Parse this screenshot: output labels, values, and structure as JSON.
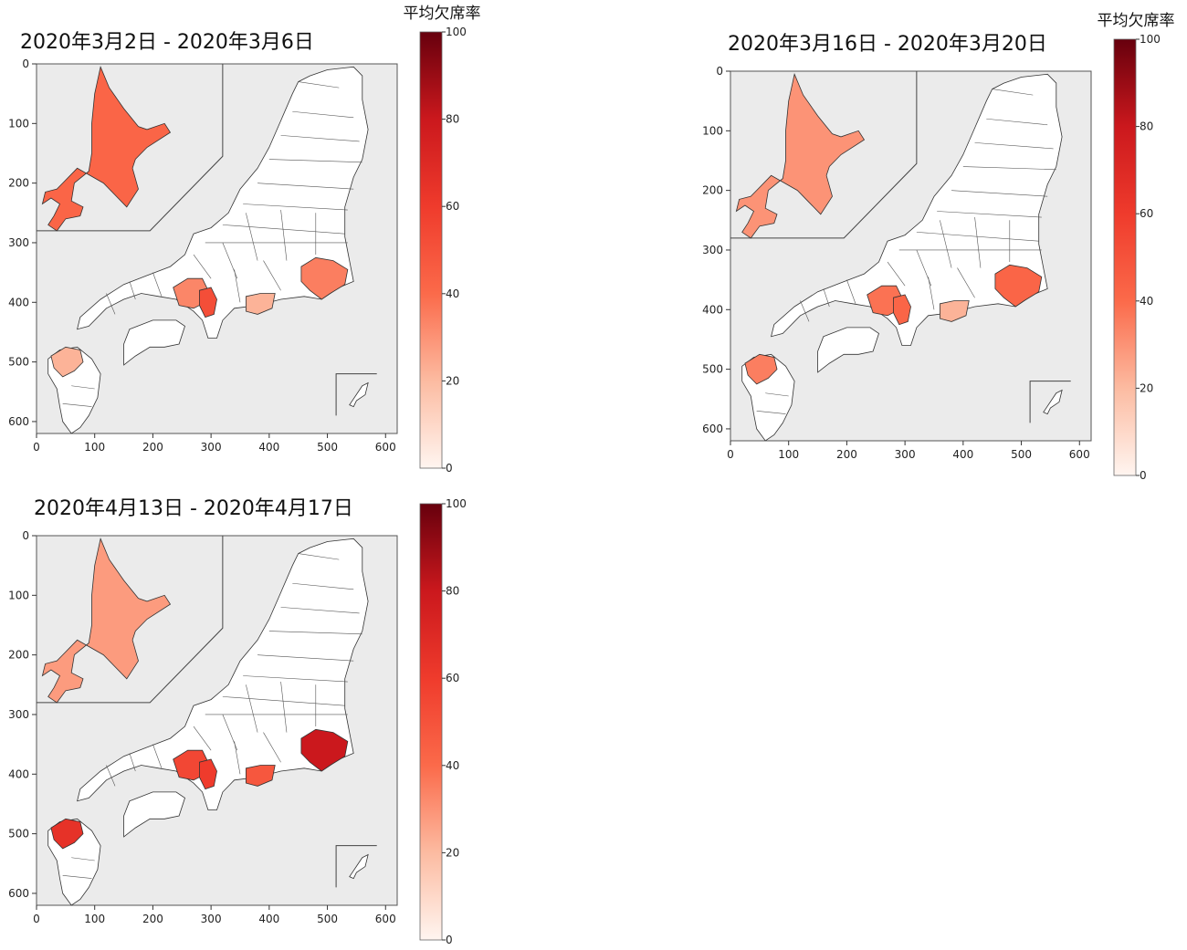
{
  "colorbar": {
    "label": "平均欠席率",
    "ticks": [
      "0",
      "20",
      "40",
      "60",
      "80",
      "100"
    ],
    "colors": [
      "#fff5f0",
      "#fcbba1",
      "#fb6a4a",
      "#ef3b2c",
      "#cb181d",
      "#67000d"
    ]
  },
  "axis": {
    "x_ticks": [
      "0",
      "100",
      "200",
      "300",
      "400",
      "500",
      "600"
    ],
    "y_ticks": [
      "0",
      "100",
      "200",
      "300",
      "400",
      "500",
      "600"
    ]
  },
  "colors": {
    "map_background": "#ebebeb",
    "unaffected_prefecture": "#ffffff",
    "border": "#333333"
  },
  "panels": [
    {
      "title": "2020年3月2日 - 2020年3月6日",
      "show_colorbar_label": true,
      "regions": [
        {
          "region": "hokkaido",
          "rate": 42
        },
        {
          "region": "tokyo-bay",
          "rate": 35
        },
        {
          "region": "shizuoka",
          "rate": 22
        },
        {
          "region": "kansai",
          "rate": 33
        },
        {
          "region": "osaka",
          "rate": 52
        },
        {
          "region": "fukuoka",
          "rate": 22
        }
      ]
    },
    {
      "title": "2020年3月16日 - 2020年3月20日",
      "show_colorbar_label": true,
      "regions": [
        {
          "region": "hokkaido",
          "rate": 30
        },
        {
          "region": "tokyo-bay",
          "rate": 42
        },
        {
          "region": "shizuoka",
          "rate": 22
        },
        {
          "region": "kansai",
          "rate": 38
        },
        {
          "region": "osaka",
          "rate": 42
        },
        {
          "region": "fukuoka",
          "rate": 35
        }
      ]
    },
    {
      "title": "2020年4月13日 - 2020年4月17日",
      "show_colorbar_label": false,
      "regions": [
        {
          "region": "hokkaido",
          "rate": 28
        },
        {
          "region": "tokyo-bay",
          "rate": 80
        },
        {
          "region": "shizuoka",
          "rate": 48
        },
        {
          "region": "kansai",
          "rate": 55
        },
        {
          "region": "osaka",
          "rate": 60
        },
        {
          "region": "fukuoka",
          "rate": 65
        }
      ]
    }
  ]
}
